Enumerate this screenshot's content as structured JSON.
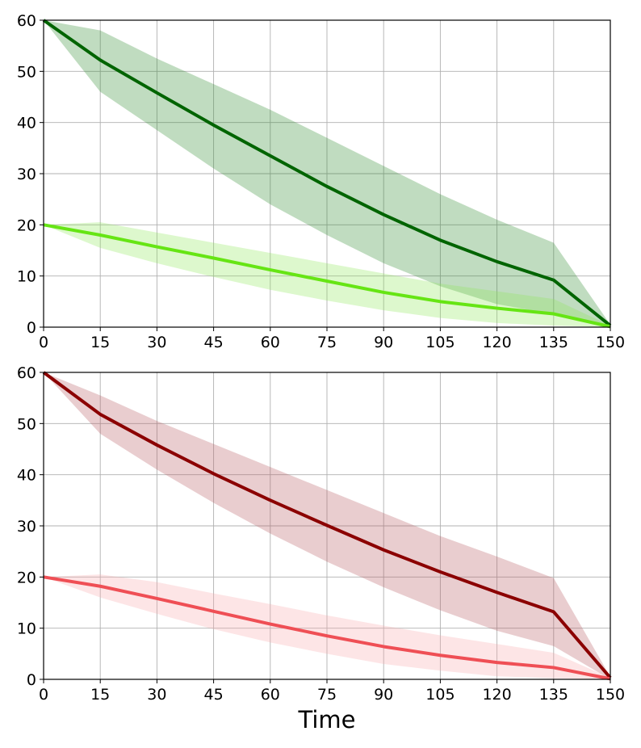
{
  "chart_data": [
    {
      "type": "line",
      "title": "",
      "xlabel": "",
      "ylabel": "",
      "x": [
        0,
        15,
        30,
        45,
        60,
        75,
        90,
        105,
        120,
        135,
        150
      ],
      "xlim": [
        0,
        150
      ],
      "ylim": [
        0,
        60
      ],
      "grid": true,
      "xticks": [
        "0",
        "15",
        "30",
        "45",
        "60",
        "75",
        "90",
        "105",
        "120",
        "135",
        "150"
      ],
      "yticks": [
        "0",
        "10",
        "20",
        "30",
        "40",
        "50",
        "60"
      ],
      "series": [
        {
          "name": "dark green",
          "color": "#006400",
          "band_color": "#2e8b2e",
          "values": [
            60,
            52.2,
            45.8,
            39.5,
            33.5,
            27.5,
            22,
            17,
            12.8,
            9.2,
            0.3
          ],
          "upper": [
            60,
            58,
            52.5,
            47.5,
            42.5,
            37,
            31.5,
            26,
            21,
            16.5,
            0.5
          ],
          "lower": [
            60,
            46,
            38.5,
            31,
            24,
            18,
            12.5,
            8,
            4.5,
            2.5,
            0
          ]
        },
        {
          "name": "light green",
          "color": "#66e514",
          "band_color": "#8fe85a",
          "values": [
            20,
            18,
            15.7,
            13.5,
            11.2,
            9,
            6.8,
            5,
            3.7,
            2.6,
            0.1
          ],
          "upper": [
            20,
            20.5,
            18.5,
            16.5,
            14.5,
            12.5,
            10.5,
            8.5,
            7,
            5.5,
            0.3
          ],
          "lower": [
            20,
            15.5,
            12.5,
            9.8,
            7.3,
            5.2,
            3.3,
            1.8,
            0.8,
            0.3,
            0
          ]
        }
      ]
    },
    {
      "type": "line",
      "title": "",
      "xlabel": "Time",
      "ylabel": "",
      "x": [
        0,
        15,
        30,
        45,
        60,
        75,
        90,
        105,
        120,
        135,
        150
      ],
      "xlim": [
        0,
        150
      ],
      "ylim": [
        0,
        60
      ],
      "grid": true,
      "xticks": [
        "0",
        "15",
        "30",
        "45",
        "60",
        "75",
        "90",
        "105",
        "120",
        "135",
        "150"
      ],
      "yticks": [
        "0",
        "10",
        "20",
        "30",
        "40",
        "50",
        "60"
      ],
      "series": [
        {
          "name": "dark red",
          "color": "#8b0000",
          "band_color": "#b55a5f",
          "values": [
            60,
            51.8,
            45.8,
            40.2,
            35,
            30.1,
            25.3,
            21,
            17,
            13.2,
            0.3
          ],
          "upper": [
            60,
            55.5,
            50.5,
            46,
            41.5,
            37,
            32.5,
            28,
            24,
            19.8,
            0.5
          ],
          "lower": [
            60,
            48,
            41,
            34.5,
            28.5,
            23,
            18,
            13.5,
            9.5,
            6.5,
            0
          ]
        },
        {
          "name": "light red",
          "color": "#ef4f55",
          "band_color": "#f7a8ac",
          "values": [
            20,
            18.2,
            15.8,
            13.3,
            10.8,
            8.5,
            6.4,
            4.7,
            3.3,
            2.3,
            0.1
          ],
          "upper": [
            20,
            20.5,
            19,
            16.8,
            14.7,
            12.5,
            10.5,
            8.6,
            6.9,
            5.2,
            0.3
          ],
          "lower": [
            20,
            16,
            12.8,
            9.8,
            7.2,
            5,
            3,
            1.7,
            0.6,
            0.2,
            0
          ]
        }
      ]
    }
  ]
}
